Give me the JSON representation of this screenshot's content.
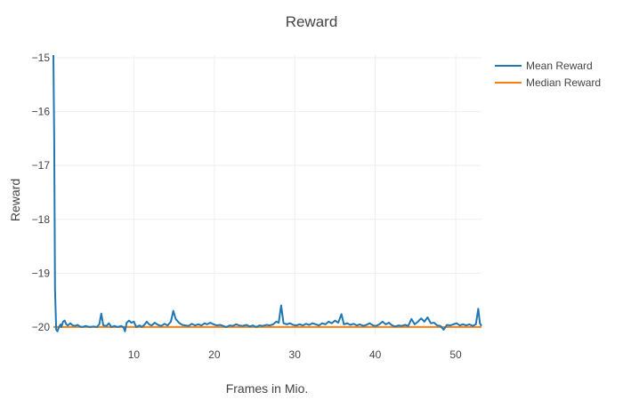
{
  "chart_data": {
    "type": "line",
    "title": "Reward",
    "xlabel": "Frames in Mio.",
    "ylabel": "Reward",
    "xlim": [
      0,
      53.2
    ],
    "ylim": [
      -20.15,
      -14.95
    ],
    "x_ticks": [
      10,
      20,
      30,
      40,
      50
    ],
    "y_ticks": [
      -15,
      -16,
      -17,
      -18,
      -19,
      -20
    ],
    "grid": true,
    "legend_position": "top-right",
    "series": [
      {
        "name": "Mean Reward",
        "color": "#1f77b4",
        "points": [
          [
            0,
            -14.95
          ],
          [
            0.1,
            -16.5
          ],
          [
            0.2,
            -19.3
          ],
          [
            0.35,
            -20.05
          ],
          [
            0.5,
            -20.08
          ],
          [
            0.7,
            -20.0
          ],
          [
            0.9,
            -19.95
          ],
          [
            1.0,
            -20.0
          ],
          [
            1.2,
            -19.9
          ],
          [
            1.4,
            -19.88
          ],
          [
            1.6,
            -19.95
          ],
          [
            1.8,
            -19.97
          ],
          [
            2.1,
            -19.93
          ],
          [
            2.4,
            -19.97
          ],
          [
            2.7,
            -19.98
          ],
          [
            3.0,
            -19.96
          ],
          [
            3.3,
            -19.99
          ],
          [
            3.6,
            -20.0
          ],
          [
            4.0,
            -19.98
          ],
          [
            4.5,
            -20.0
          ],
          [
            5.0,
            -19.99
          ],
          [
            5.4,
            -20.0
          ],
          [
            5.7,
            -19.95
          ],
          [
            5.95,
            -19.75
          ],
          [
            6.2,
            -19.97
          ],
          [
            6.6,
            -19.98
          ],
          [
            6.9,
            -19.93
          ],
          [
            7.2,
            -20.0
          ],
          [
            7.6,
            -19.98
          ],
          [
            8.0,
            -20.0
          ],
          [
            8.4,
            -19.98
          ],
          [
            8.7,
            -20.0
          ],
          [
            8.9,
            -20.08
          ],
          [
            9.1,
            -19.92
          ],
          [
            9.4,
            -19.88
          ],
          [
            9.7,
            -19.92
          ],
          [
            10.0,
            -19.9
          ],
          [
            10.3,
            -20.0
          ],
          [
            10.7,
            -19.97
          ],
          [
            11.0,
            -20.0
          ],
          [
            11.3,
            -19.96
          ],
          [
            11.6,
            -19.9
          ],
          [
            11.9,
            -19.95
          ],
          [
            12.2,
            -19.97
          ],
          [
            12.6,
            -19.92
          ],
          [
            13.0,
            -19.96
          ],
          [
            13.4,
            -19.98
          ],
          [
            13.8,
            -19.94
          ],
          [
            14.2,
            -19.97
          ],
          [
            14.6,
            -19.9
          ],
          [
            14.9,
            -19.7
          ],
          [
            15.2,
            -19.85
          ],
          [
            15.6,
            -19.92
          ],
          [
            16.0,
            -19.96
          ],
          [
            16.4,
            -19.97
          ],
          [
            16.8,
            -19.98
          ],
          [
            17.2,
            -19.94
          ],
          [
            17.6,
            -19.97
          ],
          [
            18.0,
            -19.95
          ],
          [
            18.4,
            -19.97
          ],
          [
            18.8,
            -19.93
          ],
          [
            19.1,
            -19.95
          ],
          [
            19.5,
            -19.92
          ],
          [
            19.9,
            -19.95
          ],
          [
            20.3,
            -19.97
          ],
          [
            20.7,
            -19.96
          ],
          [
            21.1,
            -19.98
          ],
          [
            21.5,
            -20.0
          ],
          [
            21.9,
            -19.97
          ],
          [
            22.3,
            -19.98
          ],
          [
            22.7,
            -19.95
          ],
          [
            23.1,
            -19.97
          ],
          [
            23.5,
            -19.98
          ],
          [
            24.0,
            -19.96
          ],
          [
            24.4,
            -19.99
          ],
          [
            24.8,
            -19.97
          ],
          [
            25.2,
            -20.0
          ],
          [
            25.6,
            -19.97
          ],
          [
            26.0,
            -19.98
          ],
          [
            26.5,
            -19.96
          ],
          [
            26.9,
            -19.97
          ],
          [
            27.3,
            -19.95
          ],
          [
            27.7,
            -19.9
          ],
          [
            28.0,
            -19.92
          ],
          [
            28.3,
            -19.6
          ],
          [
            28.6,
            -19.93
          ],
          [
            29.0,
            -19.95
          ],
          [
            29.4,
            -19.93
          ],
          [
            29.8,
            -19.96
          ],
          [
            30.2,
            -19.97
          ],
          [
            30.6,
            -19.95
          ],
          [
            31.0,
            -19.97
          ],
          [
            31.4,
            -19.94
          ],
          [
            31.8,
            -19.96
          ],
          [
            32.2,
            -19.93
          ],
          [
            32.6,
            -19.95
          ],
          [
            33.0,
            -19.97
          ],
          [
            33.4,
            -19.93
          ],
          [
            33.8,
            -19.95
          ],
          [
            34.2,
            -19.9
          ],
          [
            34.6,
            -19.93
          ],
          [
            35.0,
            -19.88
          ],
          [
            35.4,
            -19.92
          ],
          [
            35.8,
            -19.76
          ],
          [
            36.1,
            -19.95
          ],
          [
            36.5,
            -19.93
          ],
          [
            36.9,
            -19.96
          ],
          [
            37.3,
            -19.94
          ],
          [
            37.7,
            -19.97
          ],
          [
            38.1,
            -19.95
          ],
          [
            38.5,
            -19.98
          ],
          [
            38.9,
            -19.96
          ],
          [
            39.3,
            -19.93
          ],
          [
            39.7,
            -19.97
          ],
          [
            40.1,
            -19.98
          ],
          [
            40.5,
            -19.95
          ],
          [
            40.9,
            -19.9
          ],
          [
            41.3,
            -19.95
          ],
          [
            41.7,
            -19.92
          ],
          [
            42.1,
            -19.97
          ],
          [
            42.5,
            -19.99
          ],
          [
            42.9,
            -19.97
          ],
          [
            43.3,
            -19.98
          ],
          [
            43.7,
            -19.96
          ],
          [
            44.1,
            -19.98
          ],
          [
            44.5,
            -19.85
          ],
          [
            44.9,
            -19.95
          ],
          [
            45.3,
            -19.9
          ],
          [
            45.7,
            -19.84
          ],
          [
            46.1,
            -19.9
          ],
          [
            46.5,
            -19.82
          ],
          [
            46.9,
            -19.93
          ],
          [
            47.3,
            -19.92
          ],
          [
            47.7,
            -19.97
          ],
          [
            48.1,
            -19.98
          ],
          [
            48.5,
            -20.05
          ],
          [
            48.9,
            -19.96
          ],
          [
            49.3,
            -19.97
          ],
          [
            49.7,
            -19.95
          ],
          [
            50.1,
            -19.93
          ],
          [
            50.5,
            -19.97
          ],
          [
            50.9,
            -19.95
          ],
          [
            51.3,
            -19.97
          ],
          [
            51.7,
            -19.95
          ],
          [
            52.1,
            -19.98
          ],
          [
            52.5,
            -19.95
          ],
          [
            52.8,
            -19.66
          ],
          [
            53.0,
            -19.93
          ],
          [
            53.2,
            -19.98
          ]
        ]
      },
      {
        "name": "Median Reward",
        "color": "#ff7f0e",
        "points": [
          [
            0,
            -20.0
          ],
          [
            10,
            -20.0
          ],
          [
            20,
            -20.0
          ],
          [
            30,
            -20.0
          ],
          [
            40,
            -20.0
          ],
          [
            50,
            -20.0
          ],
          [
            53.2,
            -20.0
          ]
        ]
      }
    ]
  }
}
